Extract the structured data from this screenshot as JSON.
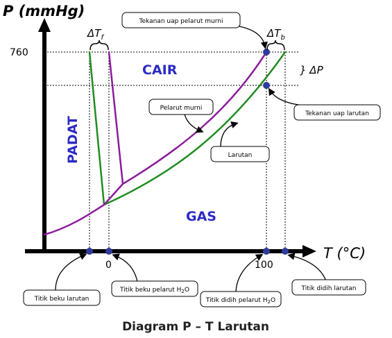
{
  "axes": {
    "y_label": "P (mmHg)",
    "x_label": "T (°C)"
  },
  "ticks": {
    "p_760": "760",
    "t_0": "0",
    "t_100": "100"
  },
  "regions": {
    "solid": "PADAT",
    "liquid": "CAIR",
    "gas": "GAS"
  },
  "deltas": {
    "tf_main": "ΔT",
    "tf_sub": "f",
    "tb_main": "ΔT",
    "tb_sub": "b",
    "dp": "} ΔP"
  },
  "callouts": {
    "vapor_pure": "Tekanan uap pelarut murni",
    "vapor_solution": "Tekanan uap larutan",
    "pure_solvent": "Pelarut murni",
    "solution": "Larutan",
    "freeze_solution": "Titik beku larutan",
    "freeze_pure_main": "Titik beku pelarut H",
    "freeze_pure_sub": "2",
    "freeze_pure_end": "O",
    "boil_pure_main": "Titik didih pelarut H",
    "boil_pure_sub": "2",
    "boil_pure_end": "O",
    "boil_solution": "Titik didih larutan"
  },
  "caption": "Diagram P – T Larutan",
  "colors": {
    "pure_solvent": "#8b1a9c",
    "solution": "#1f8c1f",
    "points": "#2f3a9a",
    "region_text": "#2b2bc4"
  }
}
